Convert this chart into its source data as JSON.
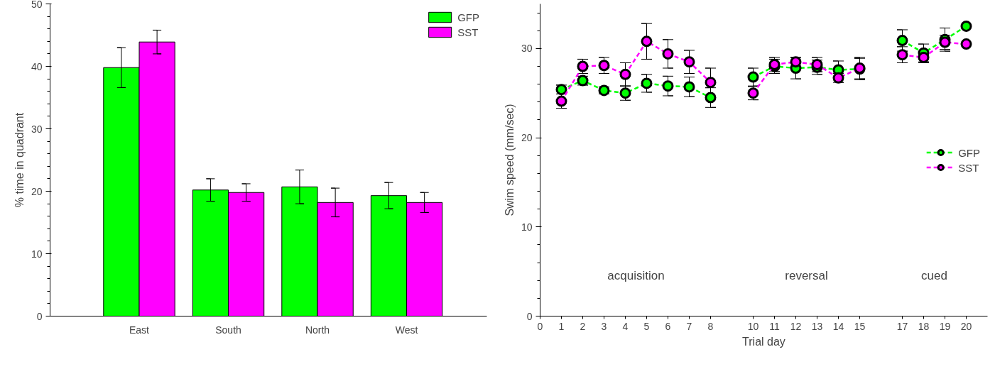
{
  "chart_data": [
    {
      "type": "bar",
      "ylabel": "% time in quadrant",
      "categories": [
        "East",
        "South",
        "North",
        "West"
      ],
      "series": [
        {
          "name": "GFP",
          "color": "#00ff00",
          "values": [
            39.8,
            20.2,
            20.7,
            19.3
          ],
          "errors": [
            3.2,
            1.8,
            2.7,
            2.1
          ]
        },
        {
          "name": "SST",
          "color": "#ff00ff",
          "values": [
            43.9,
            19.8,
            18.2,
            18.2
          ],
          "errors": [
            1.9,
            1.4,
            2.3,
            1.6
          ]
        }
      ],
      "ylim": [
        0,
        50
      ],
      "yticks": [
        0,
        10,
        20,
        30,
        40,
        50
      ],
      "grid": false,
      "legend": "top right"
    },
    {
      "type": "line",
      "xlabel": "Trial day",
      "ylabel": "Swim speed (mm/sec)",
      "x": [
        1,
        2,
        3,
        4,
        5,
        6,
        7,
        8,
        10,
        11,
        12,
        13,
        14,
        15,
        17,
        18,
        19,
        20
      ],
      "series": [
        {
          "name": "GFP",
          "color": "#00ff00",
          "values": [
            25.4,
            26.4,
            25.3,
            25.0,
            26.1,
            25.8,
            25.7,
            24.5,
            26.8,
            28.0,
            27.8,
            27.9,
            27.6,
            27.7,
            30.9,
            29.5,
            31.0,
            32.5
          ],
          "errors": [
            0.5,
            0.5,
            0.4,
            0.8,
            1.0,
            1.1,
            1.1,
            1.1,
            1.0,
            0.8,
            1.2,
            0.8,
            1.0,
            1.2,
            1.2,
            1.0,
            1.3,
            null
          ]
        },
        {
          "name": "SST",
          "color": "#ff00ff",
          "values": [
            24.1,
            28.0,
            28.1,
            27.1,
            30.8,
            29.4,
            28.5,
            26.2,
            25.0,
            28.2,
            28.5,
            28.2,
            26.7,
            27.8,
            29.3,
            29.0,
            30.7,
            30.5
          ],
          "errors": [
            0.8,
            0.8,
            0.9,
            1.3,
            2.0,
            1.6,
            1.3,
            1.6,
            0.75,
            0.8,
            0.5,
            0.8,
            0.5,
            1.2,
            0.9,
            0.6,
            0.8,
            null
          ]
        }
      ],
      "xlim": [
        0,
        21
      ],
      "xticks": [
        0,
        1,
        2,
        3,
        4,
        5,
        6,
        7,
        8,
        10,
        11,
        12,
        13,
        14,
        15,
        17,
        18,
        19,
        20
      ],
      "ylim": [
        0,
        35
      ],
      "yticks": [
        0,
        10,
        20,
        30
      ],
      "marker": "circle",
      "line_style": "dashed",
      "grid": false,
      "legend": "right",
      "annotations": [
        "acquisition",
        "reversal",
        "cued"
      ]
    }
  ]
}
